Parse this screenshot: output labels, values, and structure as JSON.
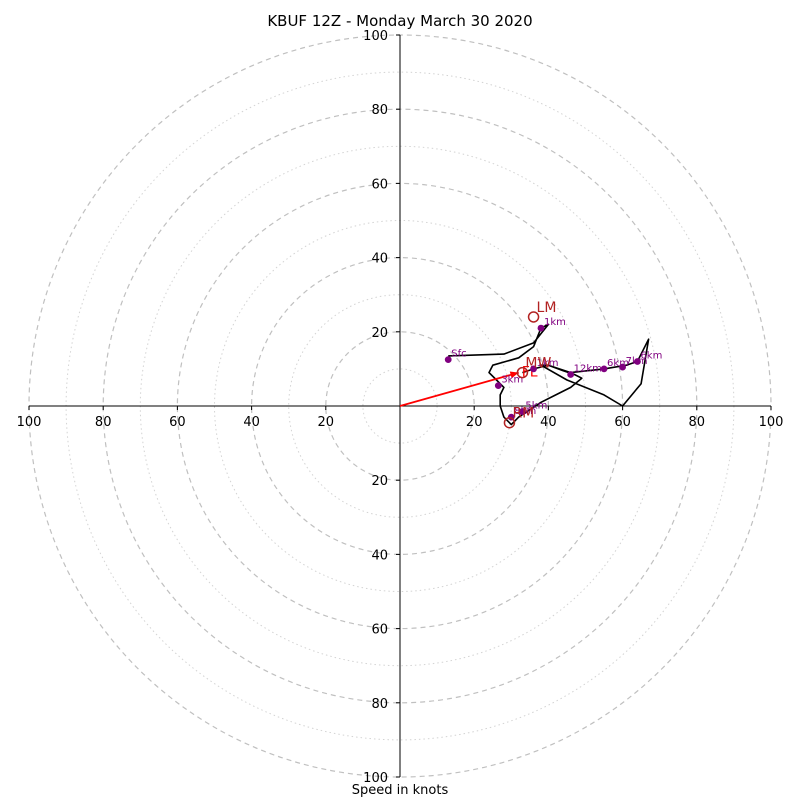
{
  "chart_data": {
    "type": "hodograph",
    "title": "KBUF 12Z - Monday March 30 2020",
    "xlabel": "Speed in knots",
    "units": "knots",
    "range": [
      -100,
      100
    ],
    "ring_major": [
      20,
      40,
      60,
      80,
      100
    ],
    "ring_minor": [
      10,
      30,
      50,
      70,
      90
    ],
    "tick_labels": [
      "100",
      "80",
      "60",
      "40",
      "20",
      "20",
      "40",
      "60",
      "80",
      "100"
    ],
    "vertical_tick_labels": [
      "100",
      "80",
      "60",
      "40",
      "20",
      "20",
      "40",
      "60",
      "80",
      "100"
    ],
    "colors": {
      "trace": "#000000",
      "height_markers": "#800080",
      "storm_motion": "#b22222",
      "mean_wind_vector": "#ff0000",
      "rings": "#c0c0c0"
    },
    "hodograph_trace": [
      [
        13,
        13.5
      ],
      [
        28,
        14
      ],
      [
        36,
        17
      ],
      [
        40,
        22
      ],
      [
        38,
        21
      ],
      [
        36,
        16
      ],
      [
        32,
        13
      ],
      [
        25,
        11
      ],
      [
        24,
        9
      ],
      [
        26,
        7
      ],
      [
        28,
        5
      ],
      [
        27,
        3
      ],
      [
        27,
        0
      ],
      [
        28,
        -3
      ],
      [
        30,
        -5
      ],
      [
        32,
        -3
      ],
      [
        35,
        -1
      ],
      [
        38,
        1
      ],
      [
        42,
        3
      ],
      [
        46,
        5
      ],
      [
        49,
        7.5
      ],
      [
        47,
        8.5
      ],
      [
        44,
        9.5
      ],
      [
        40,
        11
      ],
      [
        38,
        11
      ],
      [
        45,
        7
      ],
      [
        55,
        3
      ],
      [
        60,
        0
      ],
      [
        65,
        6
      ],
      [
        67,
        18
      ],
      [
        64,
        12
      ],
      [
        61,
        11
      ],
      [
        55,
        10
      ],
      [
        46,
        9
      ],
      [
        40,
        11
      ],
      [
        36,
        10
      ],
      [
        33,
        9
      ]
    ],
    "height_markers": [
      {
        "label": "Sfc",
        "u": 13,
        "v": 12.5
      },
      {
        "label": "1km",
        "u": 38,
        "v": 21
      },
      {
        "label": "1km",
        "u": 36,
        "v": 10
      },
      {
        "label": "3km",
        "u": 26.5,
        "v": 5.5
      },
      {
        "label": "5km",
        "u": 33,
        "v": -1.5
      },
      {
        "label": "12km",
        "u": 46,
        "v": 8.5
      },
      {
        "label": "6km",
        "u": 55,
        "v": 10
      },
      {
        "label": "7km",
        "u": 60,
        "v": 10.5
      },
      {
        "label": "6km",
        "u": 64,
        "v": 12
      },
      {
        "label": "8km",
        "u": 30,
        "v": -3
      }
    ],
    "storm_motion": [
      {
        "label": "LM",
        "u": 36,
        "v": 24
      },
      {
        "label": "RM",
        "u": 29.5,
        "v": -4.5
      },
      {
        "label": "MW",
        "u": 33,
        "v": 9
      }
    ],
    "mean_wind_vector": {
      "label": "FL",
      "u": 32,
      "v": 9
    }
  }
}
